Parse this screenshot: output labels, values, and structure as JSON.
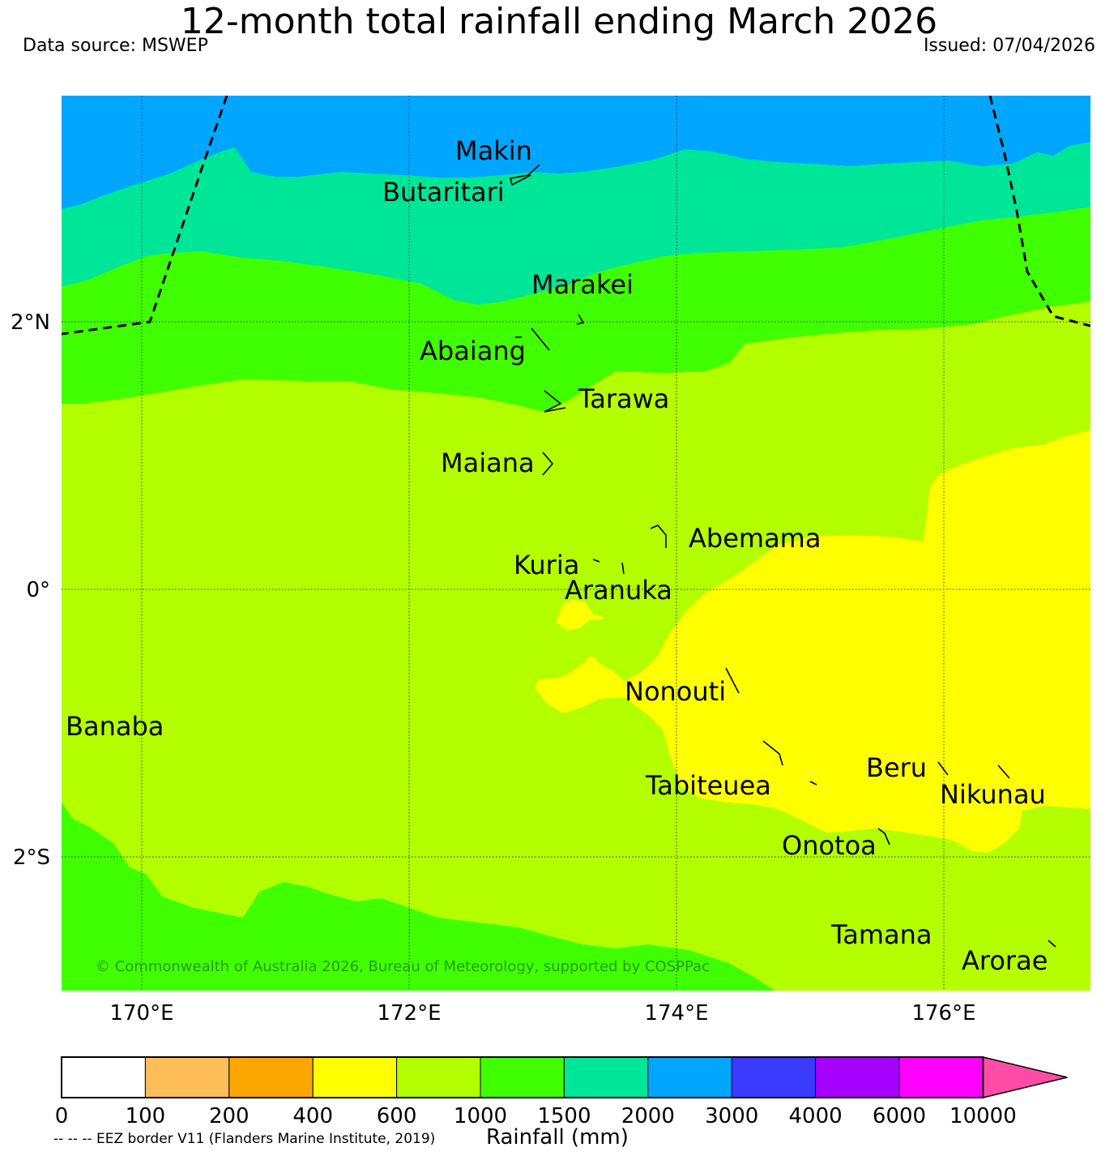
{
  "title": "12-month total rainfall ending March 2026",
  "data_source": "Data source: MSWEP",
  "issued": "Issued: 07/04/2026",
  "copyright": "© Commonwealth of Australia 2026, Bureau of Meteorology, supported by COSPPac",
  "lat_labels": [
    "2°N",
    "0°",
    "2°S"
  ],
  "lon_labels": [
    "170°E",
    "172°E",
    "174°E",
    "176°E"
  ],
  "places": [
    {
      "name": "Makin"
    },
    {
      "name": "Butaritari"
    },
    {
      "name": "Marakei"
    },
    {
      "name": "Abaiang"
    },
    {
      "name": "Tarawa"
    },
    {
      "name": "Maiana"
    },
    {
      "name": "Abemama"
    },
    {
      "name": "Kuria"
    },
    {
      "name": "Aranuka"
    },
    {
      "name": "Nonouti"
    },
    {
      "name": "Banaba"
    },
    {
      "name": "Beru"
    },
    {
      "name": "Tabiteuea"
    },
    {
      "name": "Nikunau"
    },
    {
      "name": "Onotoa"
    },
    {
      "name": "Tamana"
    },
    {
      "name": "Arorae"
    }
  ],
  "colorbar": {
    "ticks": [
      "0",
      "100",
      "200",
      "400",
      "600",
      "1000",
      "1500",
      "2000",
      "3000",
      "4000",
      "6000",
      "10000"
    ],
    "colors": [
      "#ffffff",
      "#fdbd59",
      "#fca600",
      "#ffff00",
      "#b3ff00",
      "#40ff00",
      "#00e698",
      "#00a6ff",
      "#3b3bff",
      "#a600ff",
      "#ff00ff",
      "#ff4da6"
    ],
    "label": "Rainfall (mm)"
  },
  "eez_note": "-- -- -- EEZ border V11 (Flanders Marine Institute, 2019)"
}
